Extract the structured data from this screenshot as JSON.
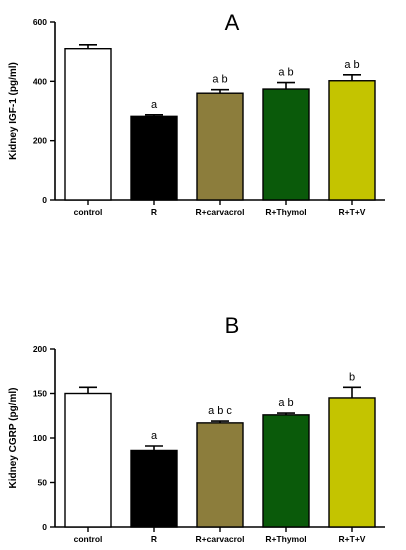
{
  "chart_data": [
    {
      "type": "bar",
      "panel_label": "A",
      "ylabel": "Kidney IGF-1 (pg/ml)",
      "xlabel": "",
      "ylim": [
        0,
        600
      ],
      "yticks": [
        0,
        200,
        400,
        600
      ],
      "grid": false,
      "categories": [
        "control",
        "R",
        "R+carvacrol",
        "R+Thymol",
        "R+T+V"
      ],
      "values": [
        510,
        282,
        360,
        374,
        402
      ],
      "errors": [
        13,
        5,
        12,
        22,
        20
      ],
      "annotations": [
        "",
        "a",
        "a b",
        "a b",
        "a b"
      ],
      "colors": [
        "#ffffff",
        "#000000",
        "#8c7d3c",
        "#0a5a0a",
        "#c4c400"
      ]
    },
    {
      "type": "bar",
      "panel_label": "B",
      "ylabel": "Kidney CGRP (pg/ml)",
      "xlabel": "",
      "ylim": [
        0,
        200
      ],
      "yticks": [
        0,
        50,
        100,
        150,
        200
      ],
      "grid": false,
      "categories": [
        "control",
        "R",
        "R+carvacrol",
        "R+Thymol",
        "R+T+V"
      ],
      "values": [
        150,
        86,
        117,
        126,
        145
      ],
      "errors": [
        7,
        5,
        2,
        2,
        12
      ],
      "annotations": [
        "",
        "a",
        "a b c",
        "a b",
        "b"
      ],
      "colors": [
        "#ffffff",
        "#000000",
        "#8c7d3c",
        "#0a5a0a",
        "#c4c400"
      ]
    }
  ]
}
